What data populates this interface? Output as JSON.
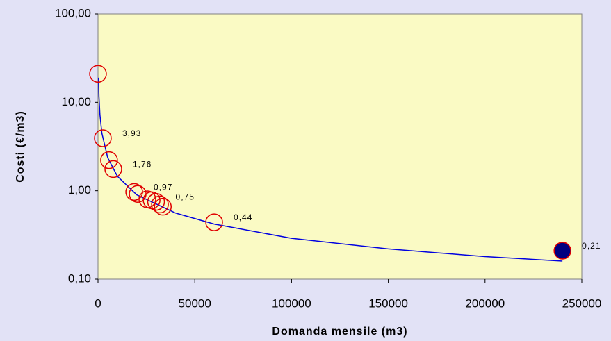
{
  "chart_data": {
    "type": "scatter",
    "xlabel": "Domanda mensile (m3)",
    "ylabel": "Costi (€/m3)",
    "xlim": [
      0,
      250000
    ],
    "xticks": [
      0,
      50000,
      100000,
      150000,
      200000,
      250000
    ],
    "ylim": [
      0.1,
      100
    ],
    "yticks": [
      {
        "value": 0.1,
        "label": "0,10"
      },
      {
        "value": 1,
        "label": "1,00"
      },
      {
        "value": 10,
        "label": "10,00"
      },
      {
        "value": 100,
        "label": "100,00"
      }
    ],
    "log_y": true,
    "series": [
      {
        "color": "#e00000",
        "fill": "none",
        "x": [
          0,
          2500,
          5700,
          7900,
          18700,
          20500,
          25500,
          27700,
          30000,
          32000,
          33500,
          60000
        ],
        "values": [
          21,
          3.93,
          2.22,
          1.76,
          0.97,
          0.92,
          0.8,
          0.78,
          0.75,
          0.7,
          0.66,
          0.44
        ],
        "value_labels": [
          null,
          "3,93",
          null,
          "1,76",
          "0,97",
          null,
          null,
          null,
          "0,75",
          null,
          null,
          "0,44"
        ]
      },
      {
        "color": "#e00000",
        "fill": "#000080",
        "x": [
          240000
        ],
        "values": [
          0.21
        ],
        "value_labels": [
          "0,21"
        ]
      },
      {
        "type": "line",
        "color": "#0000e0",
        "x": [
          250,
          500,
          1000,
          2000,
          5000,
          10000,
          20000,
          40000,
          60000,
          100000,
          150000,
          200000,
          240000
        ],
        "values": [
          19,
          11.7,
          7.24,
          4.48,
          2.37,
          1.46,
          0.9,
          0.56,
          0.42,
          0.29,
          0.22,
          0.18,
          0.16
        ]
      }
    ]
  }
}
